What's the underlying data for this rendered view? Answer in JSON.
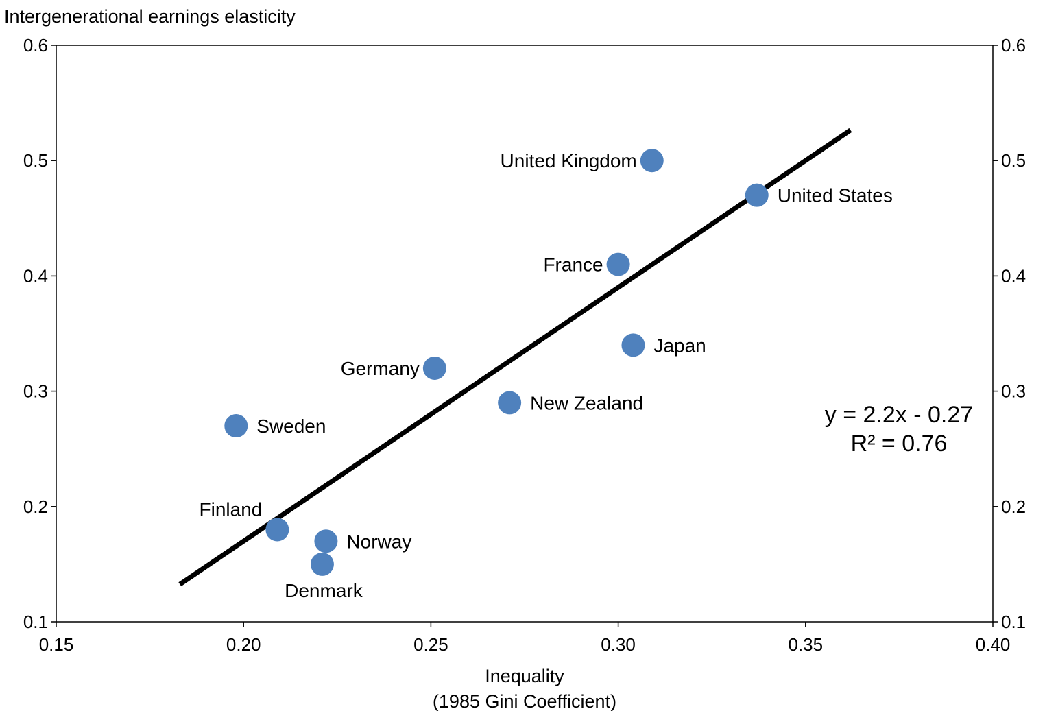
{
  "chart_data": {
    "type": "scatter",
    "title": "",
    "ylabel": "Intergenerational earnings elasticity",
    "xlabel_lines": [
      "Inequality",
      "(1985 Gini Coefficient)"
    ],
    "xlim": [
      0.15,
      0.4
    ],
    "ylim": [
      0.1,
      0.6
    ],
    "x_ticks": [
      0.15,
      0.2,
      0.25,
      0.3,
      0.35,
      0.4
    ],
    "x_tick_labels": [
      "0.15",
      "0.20",
      "0.25",
      "0.30",
      "0.35",
      "0.40"
    ],
    "y_ticks": [
      0.1,
      0.2,
      0.3,
      0.4,
      0.5,
      0.6
    ],
    "y_tick_labels": [
      "0.1",
      "0.2",
      "0.3",
      "0.4",
      "0.5",
      "0.6"
    ],
    "secondary_y_axis": true,
    "grid": false,
    "point_color": "#4f81bd",
    "line_color": "#000000",
    "points": [
      {
        "label": "United Kingdom",
        "x": 0.309,
        "y": 0.5,
        "label_side": "left"
      },
      {
        "label": "United States",
        "x": 0.337,
        "y": 0.47,
        "label_side": "right"
      },
      {
        "label": "France",
        "x": 0.3,
        "y": 0.41,
        "label_side": "left"
      },
      {
        "label": "Japan",
        "x": 0.304,
        "y": 0.34,
        "label_side": "right"
      },
      {
        "label": "Germany",
        "x": 0.251,
        "y": 0.32,
        "label_side": "left"
      },
      {
        "label": "New Zealand",
        "x": 0.271,
        "y": 0.29,
        "label_side": "right"
      },
      {
        "label": "Sweden",
        "x": 0.198,
        "y": 0.27,
        "label_side": "right"
      },
      {
        "label": "Finland",
        "x": 0.209,
        "y": 0.18,
        "label_side": "above-left"
      },
      {
        "label": "Norway",
        "x": 0.222,
        "y": 0.17,
        "label_side": "right"
      },
      {
        "label": "Denmark",
        "x": 0.221,
        "y": 0.15,
        "label_side": "below"
      }
    ],
    "trendline": {
      "slope": 2.2,
      "intercept": -0.27,
      "x_range": [
        0.183,
        0.362
      ],
      "equation": "y = 2.2x - 0.27",
      "r_squared": "R² = 0.76"
    }
  }
}
